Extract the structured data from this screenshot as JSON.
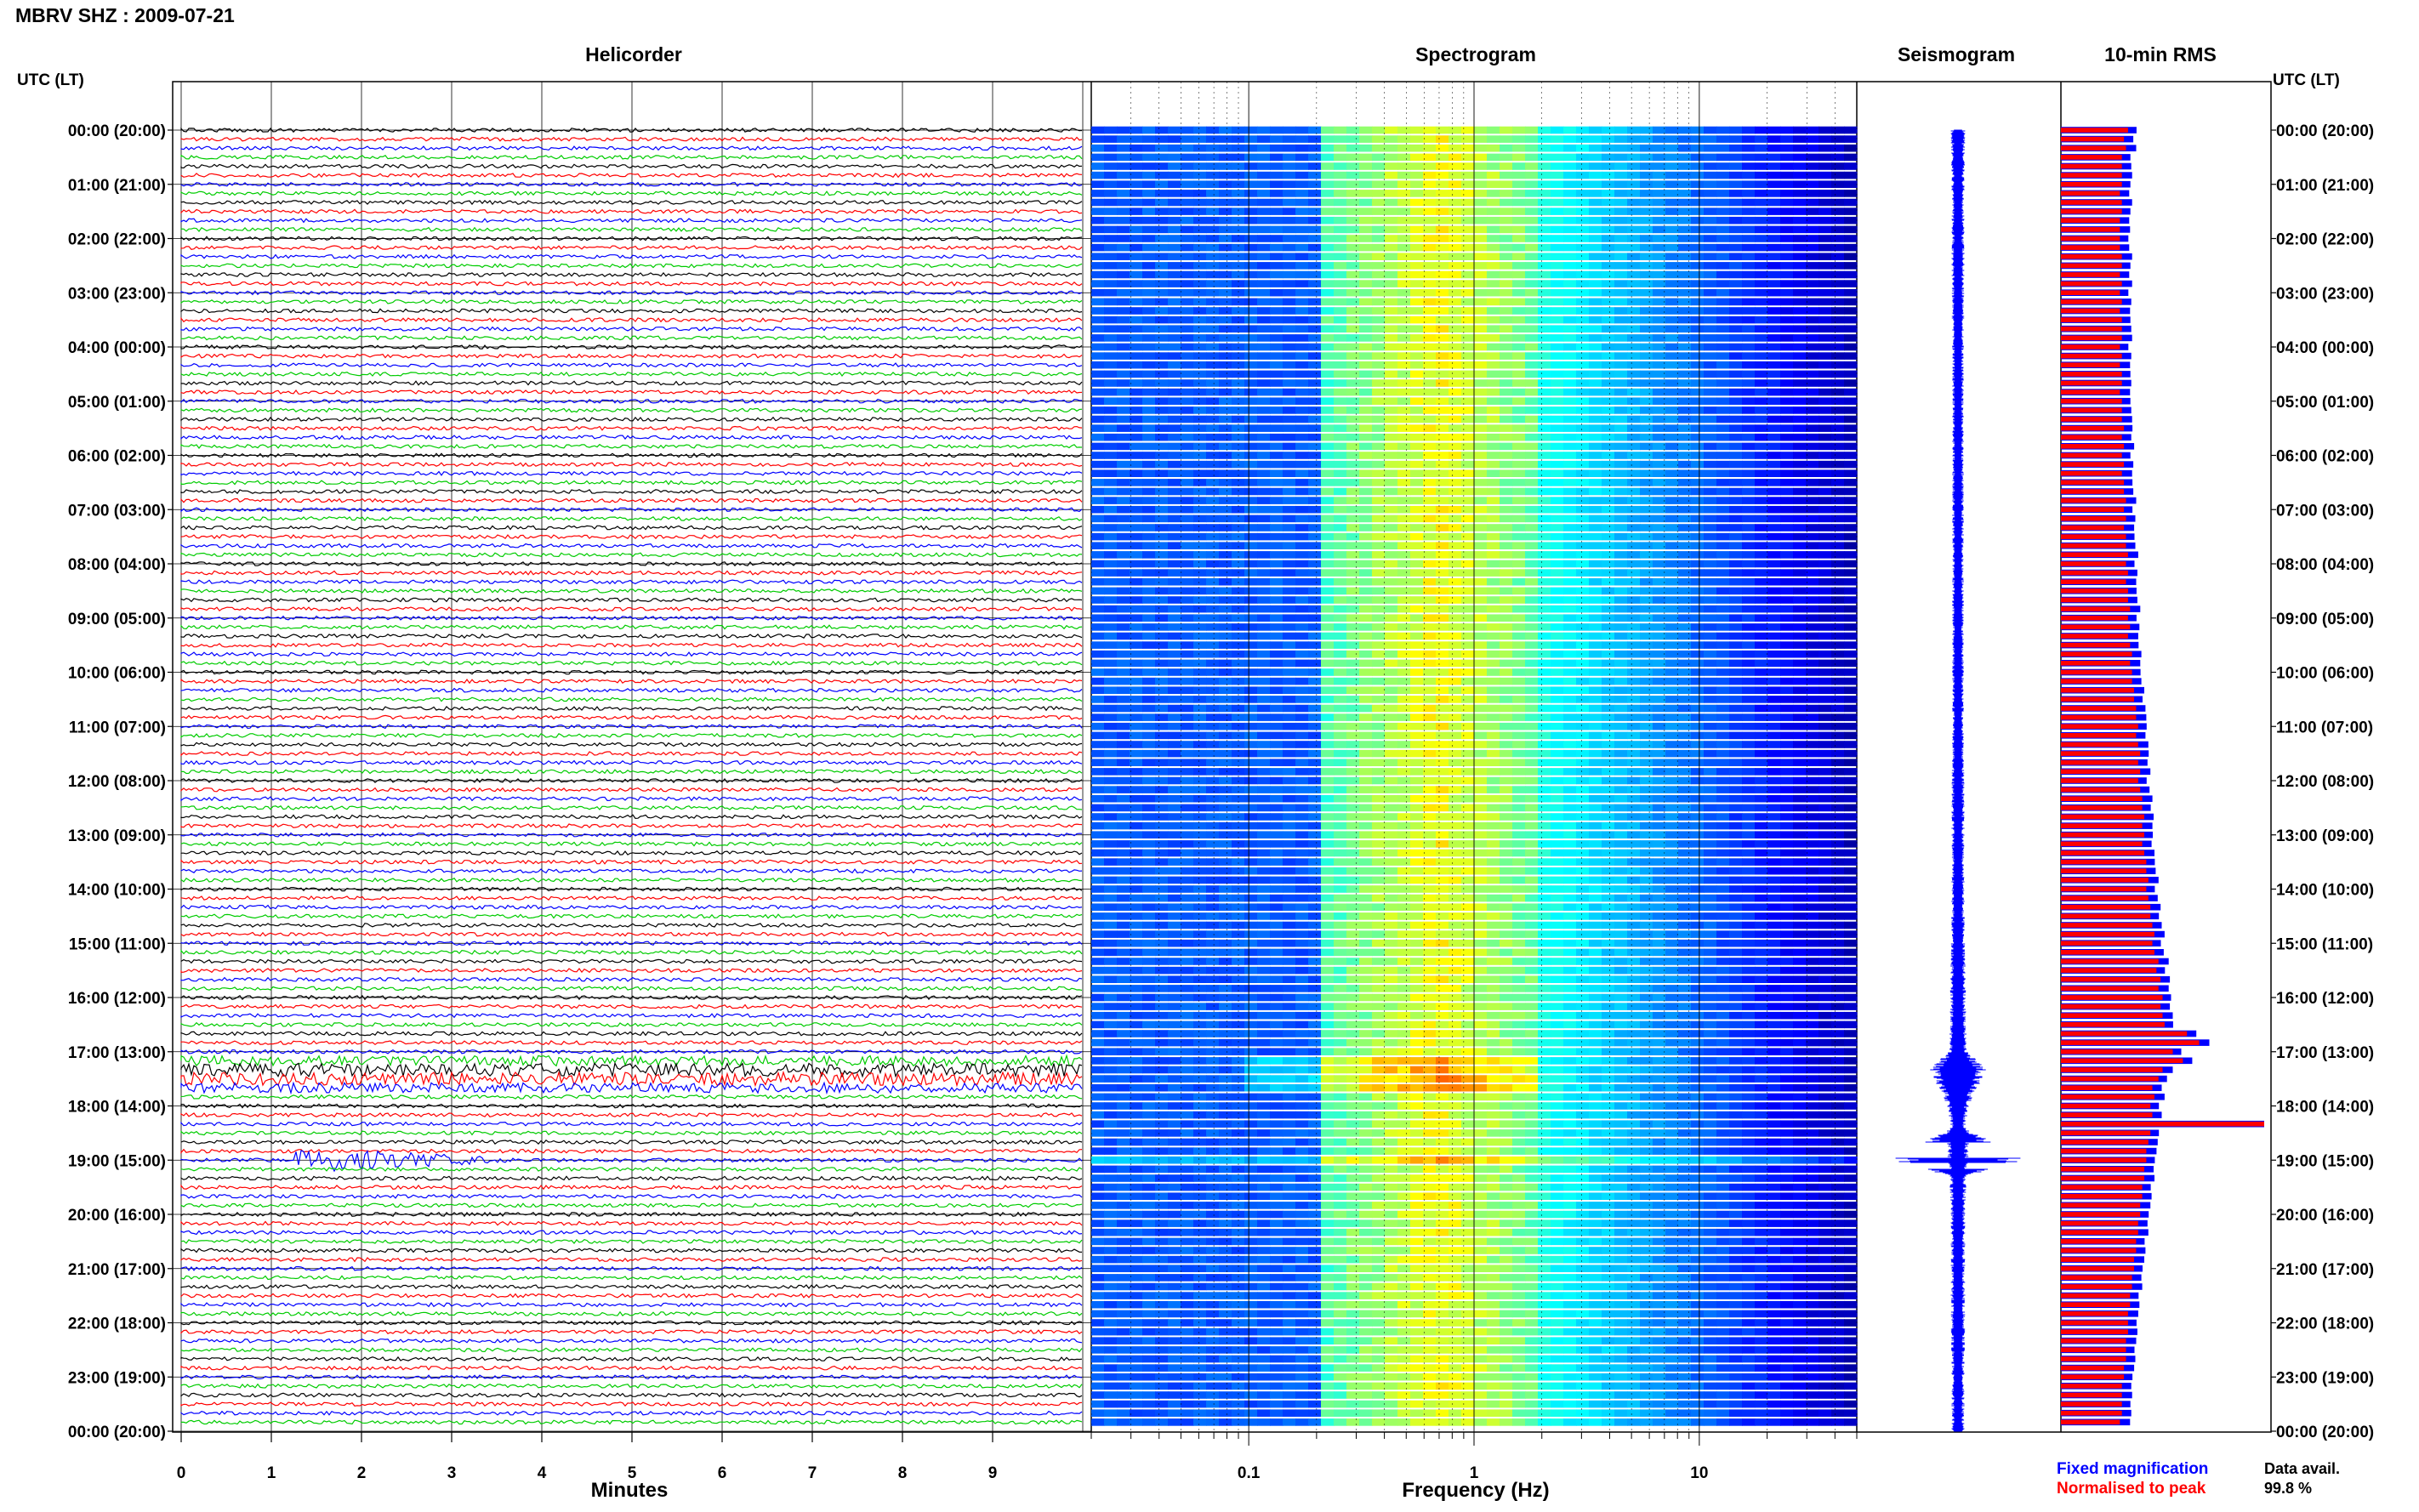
{
  "page_title": "MBRV SHZ : 2009-07-21",
  "chart_data": [
    {
      "panel": "helicorder",
      "type": "line",
      "title": "Helicorder",
      "ylabel": "UTC (LT)",
      "xlabel": "Minutes",
      "x_ticks": [
        "0",
        "1",
        "2",
        "3",
        "4",
        "5",
        "6",
        "7",
        "8",
        "9"
      ],
      "xlim": [
        0,
        10
      ],
      "y_ticks_utc": [
        "00:00 (20:00)",
        "01:00 (21:00)",
        "02:00 (22:00)",
        "03:00 (23:00)",
        "04:00 (00:00)",
        "05:00 (01:00)",
        "06:00 (02:00)",
        "07:00 (03:00)",
        "08:00 (04:00)",
        "09:00 (05:00)",
        "10:00 (06:00)",
        "11:00 (07:00)",
        "12:00 (08:00)",
        "13:00 (09:00)",
        "14:00 (10:00)",
        "15:00 (11:00)",
        "16:00 (12:00)",
        "17:00 (13:00)",
        "18:00 (14:00)",
        "19:00 (15:00)",
        "20:00 (16:00)",
        "21:00 (17:00)",
        "22:00 (18:00)",
        "23:00 (19:00)",
        "00:00 (20:00)"
      ],
      "trace_colors": [
        "#000000",
        "#ff0000",
        "#0000ff",
        "#00cc00"
      ],
      "rows_per_hour": 6,
      "events": [
        {
          "hour": 17.2,
          "minute_start": 0,
          "minute_end": 10,
          "description_level": "elevated"
        },
        {
          "hour": 19.0,
          "minute_start": 1.25,
          "minute_end": 3.5,
          "description_level": "large"
        }
      ]
    },
    {
      "panel": "spectrogram",
      "type": "heatmap",
      "title": "Spectrogram",
      "xlabel": "Frequency (Hz)",
      "x_scale": "log",
      "xlim": [
        0.02,
        50
      ],
      "x_ticks": [
        "0.1",
        "1",
        "10"
      ],
      "x_tick_values": [
        0.1,
        1,
        10
      ],
      "colormap": "jet",
      "peak_band_hz": [
        0.2,
        2
      ]
    },
    {
      "panel": "seismogram",
      "type": "line",
      "title": "Seismogram",
      "color": "#0000ff",
      "relative_amplitude_by_hour": [
        [
          0,
          0.1
        ],
        [
          1,
          0.09
        ],
        [
          2,
          0.09
        ],
        [
          3,
          0.09
        ],
        [
          4,
          0.08
        ],
        [
          5,
          0.08
        ],
        [
          6,
          0.08
        ],
        [
          7,
          0.08
        ],
        [
          8,
          0.08
        ],
        [
          9,
          0.08
        ],
        [
          10,
          0.08
        ],
        [
          11,
          0.08
        ],
        [
          12,
          0.09
        ],
        [
          13,
          0.09
        ],
        [
          14,
          0.09
        ],
        [
          15,
          0.1
        ],
        [
          16,
          0.11
        ],
        [
          17,
          0.13
        ],
        [
          17.3,
          0.4
        ],
        [
          17.6,
          0.3
        ],
        [
          18,
          0.15
        ],
        [
          18.4,
          0.1
        ],
        [
          19,
          0.95
        ],
        [
          19.3,
          0.12
        ],
        [
          20,
          0.1
        ],
        [
          21,
          0.1
        ],
        [
          22,
          0.1
        ],
        [
          23,
          0.09
        ],
        [
          24,
          0.09
        ]
      ]
    },
    {
      "panel": "rms",
      "type": "bar",
      "title": "10-min RMS",
      "legend": [
        "Fixed magnification",
        "Normalised to peak"
      ],
      "legend_colors": [
        "#0000ff",
        "#ff0000"
      ],
      "normalised_values": [
        0.33,
        0.31,
        0.32,
        0.3,
        0.3,
        0.3,
        0.3,
        0.29,
        0.3,
        0.3,
        0.29,
        0.29,
        0.29,
        0.29,
        0.3,
        0.3,
        0.29,
        0.3,
        0.29,
        0.3,
        0.29,
        0.3,
        0.3,
        0.3,
        0.29,
        0.3,
        0.29,
        0.3,
        0.3,
        0.29,
        0.3,
        0.3,
        0.3,
        0.31,
        0.3,
        0.31,
        0.3,
        0.31,
        0.3,
        0.31,
        0.31,
        0.32,
        0.31,
        0.32,
        0.31,
        0.32,
        0.32,
        0.33,
        0.32,
        0.33,
        0.32,
        0.33,
        0.33,
        0.34,
        0.33,
        0.34,
        0.33,
        0.34,
        0.35,
        0.34,
        0.35,
        0.35,
        0.36,
        0.36,
        0.37,
        0.37,
        0.38,
        0.37,
        0.38,
        0.39,
        0.38,
        0.39,
        0.38,
        0.39,
        0.4,
        0.4,
        0.41,
        0.4,
        0.41,
        0.4,
        0.41,
        0.42,
        0.42,
        0.43,
        0.42,
        0.43,
        0.44,
        0.44,
        0.45,
        0.46,
        0.45,
        0.46,
        0.48,
        0.47,
        0.49,
        0.48,
        0.5,
        0.49,
        0.5,
        0.51,
        0.62,
        0.68,
        0.55,
        0.6,
        0.5,
        0.48,
        0.45,
        0.46,
        0.44,
        0.45,
        1.0,
        0.44,
        0.43,
        0.42,
        0.42,
        0.41,
        0.41,
        0.4,
        0.4,
        0.39,
        0.39,
        0.38,
        0.38,
        0.37,
        0.37,
        0.36,
        0.36,
        0.35,
        0.35,
        0.34,
        0.34,
        0.33,
        0.33,
        0.33,
        0.32,
        0.32,
        0.32,
        0.31,
        0.31,
        0.3,
        0.3,
        0.3,
        0.3,
        0.29
      ],
      "y_ticks_utc": [
        "00:00 (20:00)",
        "01:00 (21:00)",
        "02:00 (22:00)",
        "03:00 (23:00)",
        "04:00 (00:00)",
        "05:00 (01:00)",
        "06:00 (02:00)",
        "07:00 (03:00)",
        "08:00 (04:00)",
        "09:00 (05:00)",
        "10:00 (06:00)",
        "11:00 (07:00)",
        "12:00 (08:00)",
        "13:00 (09:00)",
        "14:00 (10:00)",
        "15:00 (11:00)",
        "16:00 (12:00)",
        "17:00 (13:00)",
        "18:00 (14:00)",
        "19:00 (15:00)",
        "20:00 (16:00)",
        "21:00 (17:00)",
        "22:00 (18:00)",
        "23:00 (19:00)",
        "00:00 (20:00)"
      ],
      "ylabel": "UTC (LT)"
    }
  ],
  "data_availability": {
    "label": "Data avail.",
    "value": "99.8 %"
  }
}
